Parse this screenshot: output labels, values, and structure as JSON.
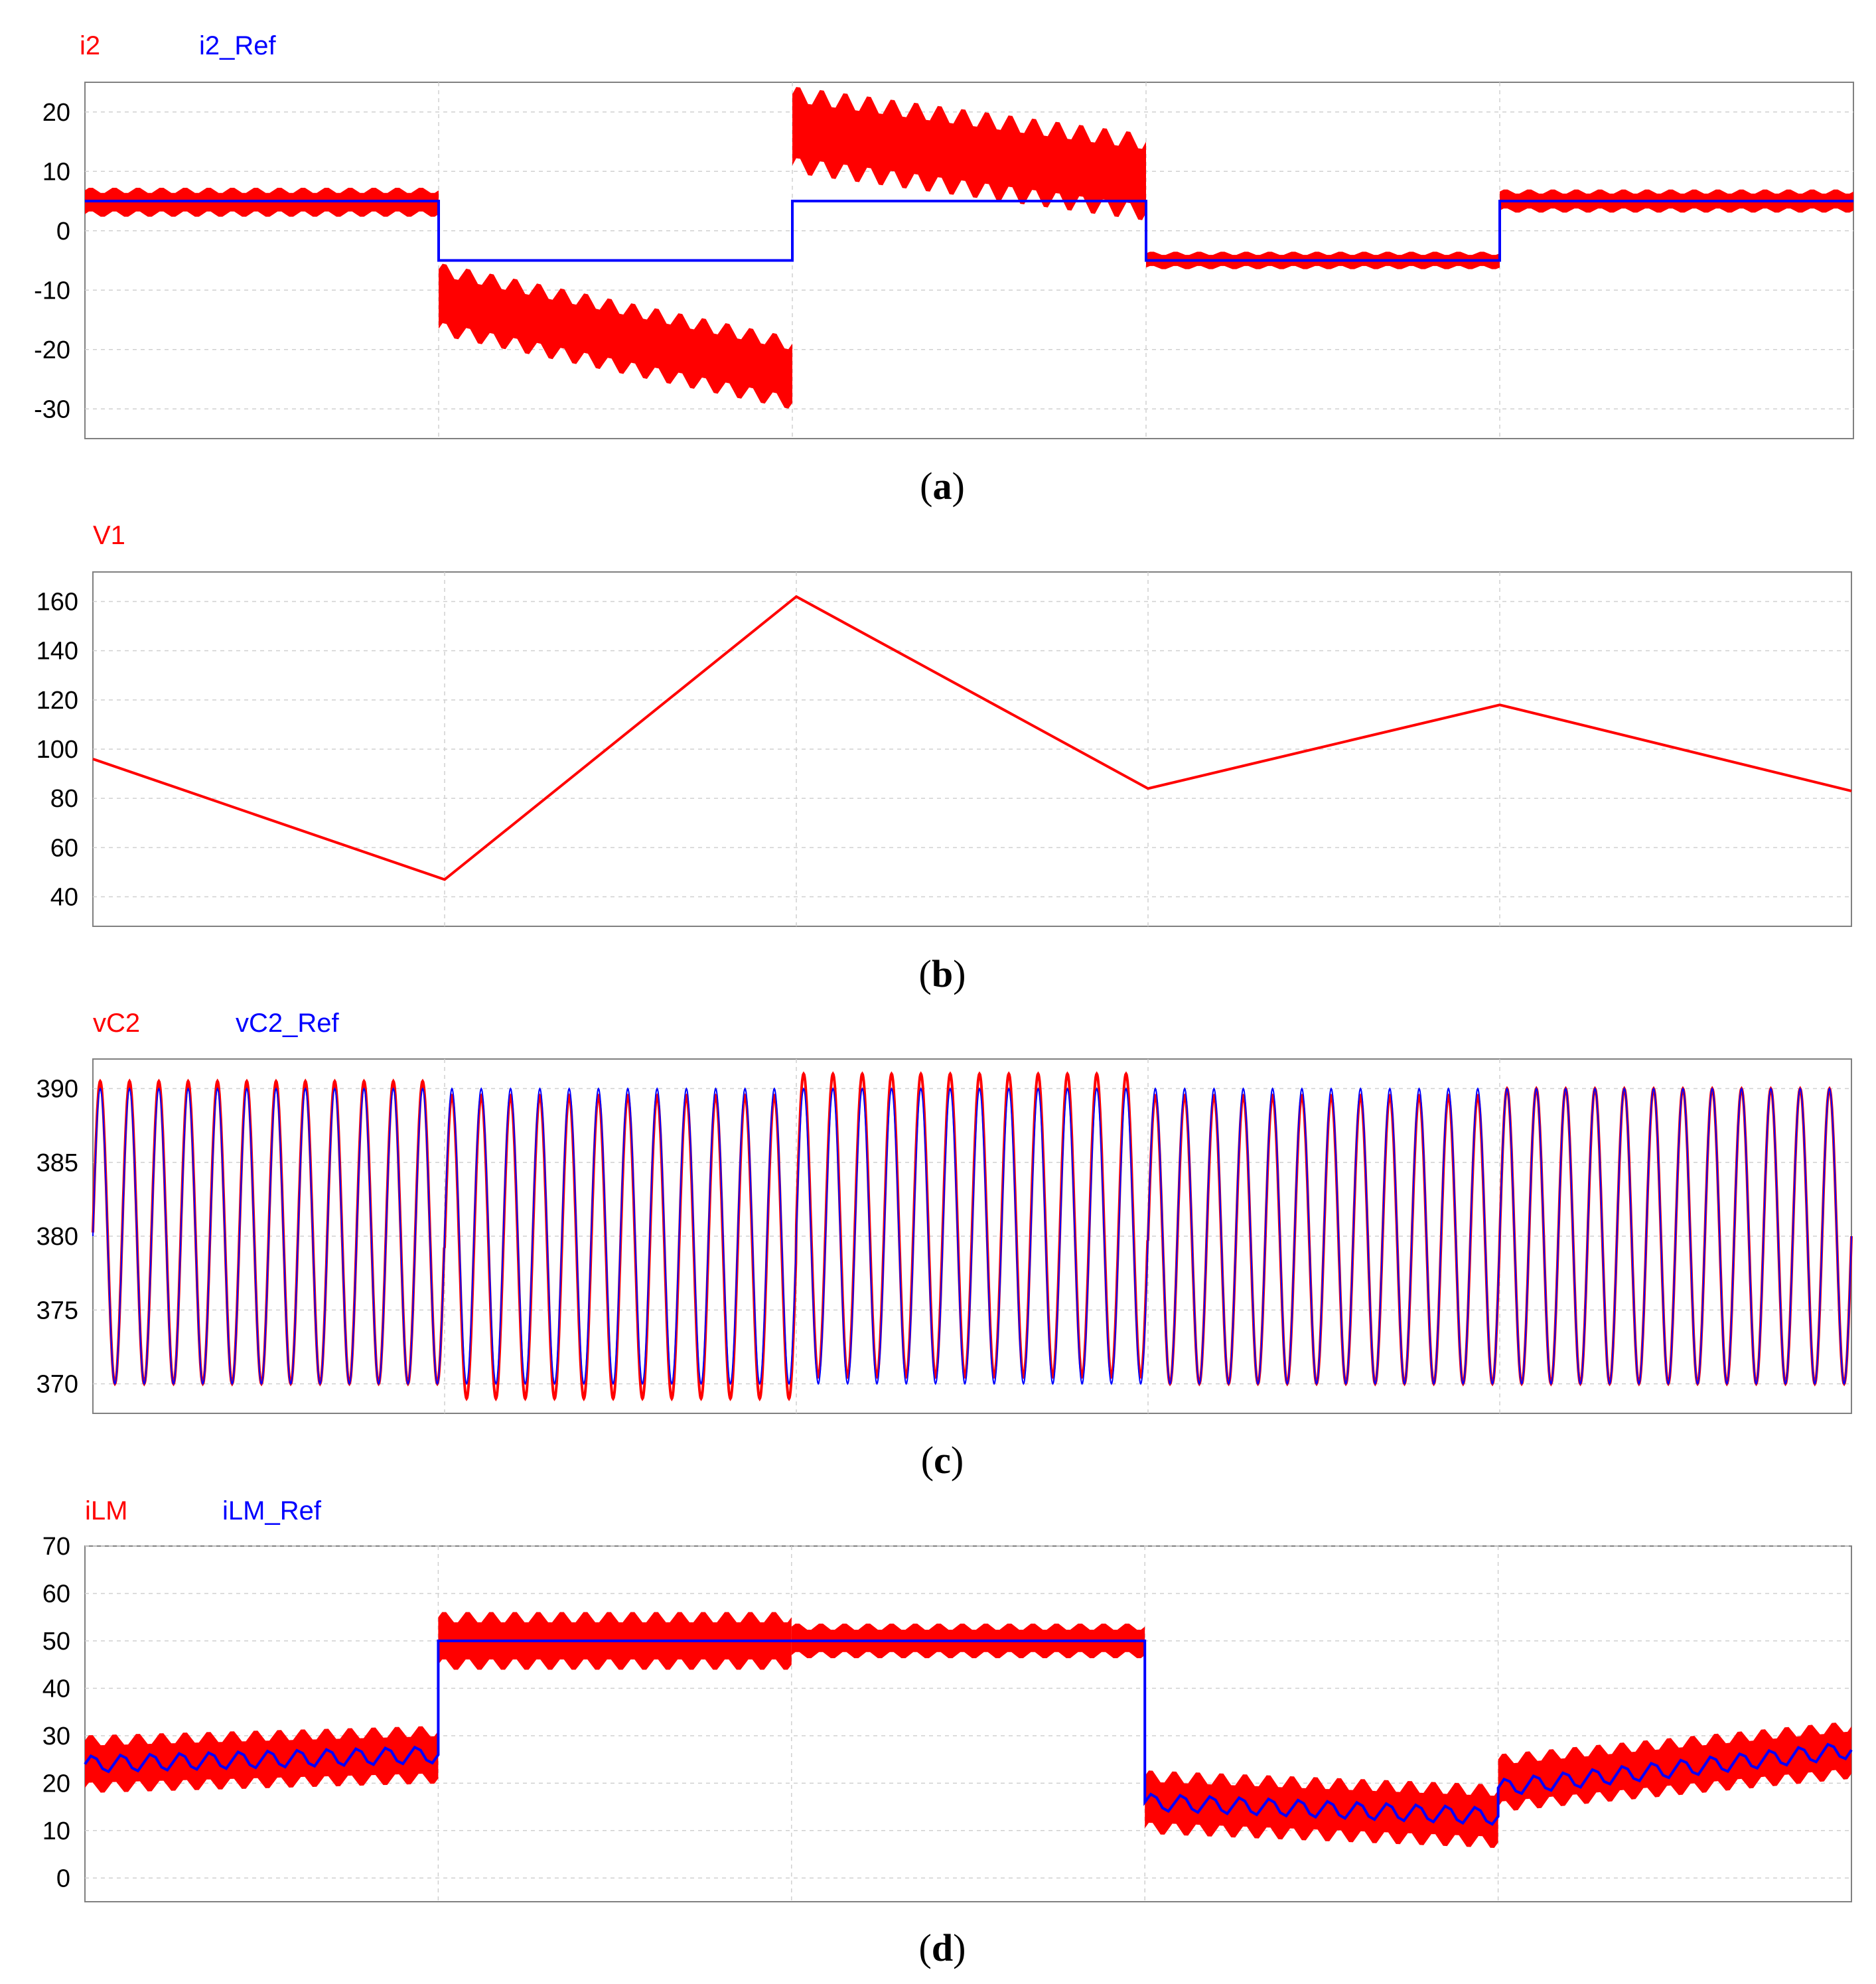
{
  "colors": {
    "primary": "#ff0000",
    "reference": "#0000ff",
    "grid": "#d0d0d0",
    "frame": "#808080"
  },
  "chart_data": [
    {
      "id": "a",
      "type": "line",
      "caption_letter": "a",
      "x_segments": 5,
      "ylim": [
        -35,
        25
      ],
      "yticks": [
        20,
        10,
        0,
        -10,
        -20,
        -30
      ],
      "legend": [
        "i2",
        "i2_Ref"
      ],
      "series": [
        {
          "name": "i2",
          "style": "band",
          "description": "inductor current with switching ripple envelope",
          "segments": [
            {
              "center": [
                4.8,
                4.8
              ],
              "ripple": 2.0
            },
            {
              "center": [
                -11.5,
                -24.0
              ],
              "ripple": 5.0
            },
            {
              "center": [
                17.0,
                9.0
              ],
              "ripple": 6.0
            },
            {
              "center": [
                -5.0,
                -5.0
              ],
              "ripple": 1.2
            },
            {
              "center": [
                5.0,
                5.0
              ],
              "ripple": 1.6
            }
          ]
        },
        {
          "name": "i2_Ref",
          "style": "step",
          "segment_values": [
            5,
            -5,
            5,
            -5,
            5
          ]
        }
      ]
    },
    {
      "id": "b",
      "type": "line",
      "caption_letter": "b",
      "x_segments": 5,
      "ylim": [
        28,
        172
      ],
      "yticks": [
        160,
        140,
        120,
        100,
        80,
        60,
        40
      ],
      "legend": [
        "V1"
      ],
      "series": [
        {
          "name": "V1",
          "style": "polyline",
          "boundary_values": [
            96,
            47,
            162,
            84,
            118,
            83
          ]
        }
      ]
    },
    {
      "id": "c",
      "type": "line",
      "caption_letter": "c",
      "x_segments": 5,
      "ylim": [
        368,
        392
      ],
      "yticks": [
        390,
        385,
        380,
        375,
        370
      ],
      "legend": [
        "vC2",
        "vC2_Ref"
      ],
      "series": [
        {
          "name": "vC2",
          "style": "sine",
          "cycles": 60,
          "segment_limits": [
            [
              370,
              390.5
            ],
            [
              369,
              389.5
            ],
            [
              370.5,
              391
            ],
            [
              370,
              389.5
            ],
            [
              370,
              390
            ]
          ]
        },
        {
          "name": "vC2_Ref",
          "style": "sine",
          "cycles": 60,
          "limits": [
            370,
            390
          ]
        }
      ]
    },
    {
      "id": "d",
      "type": "line",
      "caption_letter": "d",
      "x_segments": 5,
      "ylim": [
        -5,
        70
      ],
      "yticks": [
        70,
        60,
        50,
        40,
        30,
        20,
        10,
        0
      ],
      "legend": [
        "iLM",
        "iLM_Ref"
      ],
      "series": [
        {
          "name": "iLM",
          "style": "band",
          "segments": [
            {
              "center": [
                24,
                26
              ],
              "ripple": 5.0
            },
            {
              "center": [
                50,
                50
              ],
              "ripple": 5.0
            },
            {
              "center": [
                50,
                50
              ],
              "ripple": 3.0
            },
            {
              "center": [
                16,
                13
              ],
              "ripple": 5.5
            },
            {
              "center": [
                20,
                27
              ],
              "ripple": 5.0
            }
          ]
        },
        {
          "name": "iLM_Ref",
          "style": "trace",
          "segment_values": [
            [
              24,
              26
            ],
            [
              50,
              50
            ],
            [
              50,
              50
            ],
            [
              16,
              13
            ],
            [
              19,
              27
            ]
          ]
        }
      ]
    }
  ]
}
